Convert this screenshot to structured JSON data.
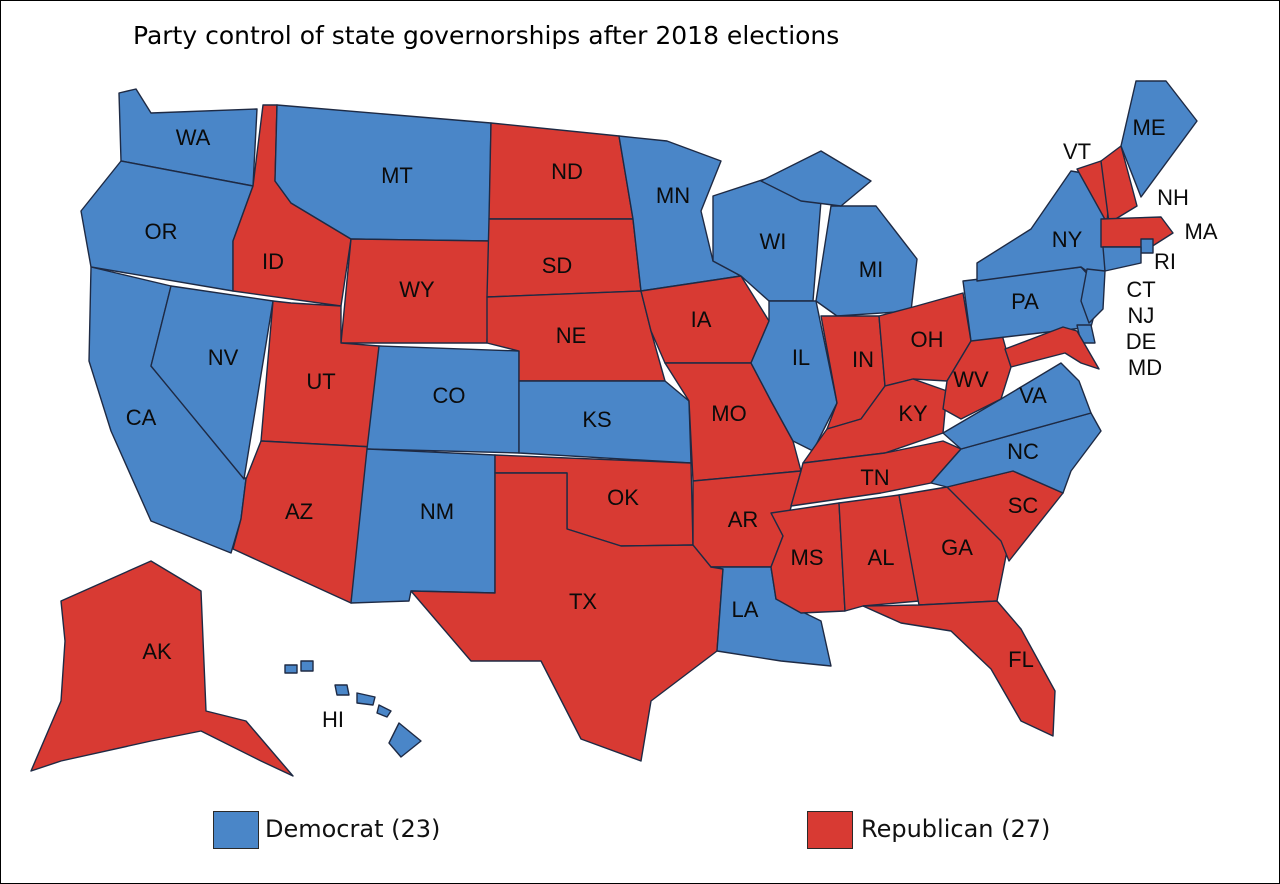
{
  "title": "Party control of state governorships after 2018 elections",
  "colors": {
    "democrat": "#4a86c8",
    "republican": "#d83a33",
    "outline": "#1e2a44"
  },
  "legend": [
    {
      "party": "democrat",
      "label": "Democrat (23)"
    },
    {
      "party": "republican",
      "label": "Republican (27)"
    }
  ],
  "states": [
    {
      "abbr": "WA",
      "party": "democrat"
    },
    {
      "abbr": "OR",
      "party": "democrat"
    },
    {
      "abbr": "CA",
      "party": "democrat"
    },
    {
      "abbr": "NV",
      "party": "democrat"
    },
    {
      "abbr": "ID",
      "party": "republican"
    },
    {
      "abbr": "MT",
      "party": "democrat"
    },
    {
      "abbr": "WY",
      "party": "republican"
    },
    {
      "abbr": "UT",
      "party": "republican"
    },
    {
      "abbr": "AZ",
      "party": "republican"
    },
    {
      "abbr": "CO",
      "party": "democrat"
    },
    {
      "abbr": "NM",
      "party": "democrat"
    },
    {
      "abbr": "ND",
      "party": "republican"
    },
    {
      "abbr": "SD",
      "party": "republican"
    },
    {
      "abbr": "NE",
      "party": "republican"
    },
    {
      "abbr": "KS",
      "party": "democrat"
    },
    {
      "abbr": "OK",
      "party": "republican"
    },
    {
      "abbr": "TX",
      "party": "republican"
    },
    {
      "abbr": "MN",
      "party": "democrat"
    },
    {
      "abbr": "IA",
      "party": "republican"
    },
    {
      "abbr": "MO",
      "party": "republican"
    },
    {
      "abbr": "AR",
      "party": "republican"
    },
    {
      "abbr": "LA",
      "party": "democrat"
    },
    {
      "abbr": "WI",
      "party": "democrat"
    },
    {
      "abbr": "IL",
      "party": "democrat"
    },
    {
      "abbr": "MI",
      "party": "democrat"
    },
    {
      "abbr": "IN",
      "party": "republican"
    },
    {
      "abbr": "OH",
      "party": "republican"
    },
    {
      "abbr": "KY",
      "party": "republican"
    },
    {
      "abbr": "TN",
      "party": "republican"
    },
    {
      "abbr": "MS",
      "party": "republican"
    },
    {
      "abbr": "AL",
      "party": "republican"
    },
    {
      "abbr": "GA",
      "party": "republican"
    },
    {
      "abbr": "FL",
      "party": "republican"
    },
    {
      "abbr": "SC",
      "party": "republican"
    },
    {
      "abbr": "NC",
      "party": "democrat"
    },
    {
      "abbr": "VA",
      "party": "democrat"
    },
    {
      "abbr": "WV",
      "party": "republican"
    },
    {
      "abbr": "PA",
      "party": "democrat"
    },
    {
      "abbr": "NY",
      "party": "democrat"
    },
    {
      "abbr": "VT",
      "party": "republican"
    },
    {
      "abbr": "NH",
      "party": "republican"
    },
    {
      "abbr": "ME",
      "party": "democrat"
    },
    {
      "abbr": "MA",
      "party": "republican"
    },
    {
      "abbr": "RI",
      "party": "democrat"
    },
    {
      "abbr": "CT",
      "party": "democrat"
    },
    {
      "abbr": "NJ",
      "party": "democrat"
    },
    {
      "abbr": "DE",
      "party": "democrat"
    },
    {
      "abbr": "MD",
      "party": "republican"
    },
    {
      "abbr": "AK",
      "party": "republican"
    },
    {
      "abbr": "HI",
      "party": "democrat"
    }
  ]
}
